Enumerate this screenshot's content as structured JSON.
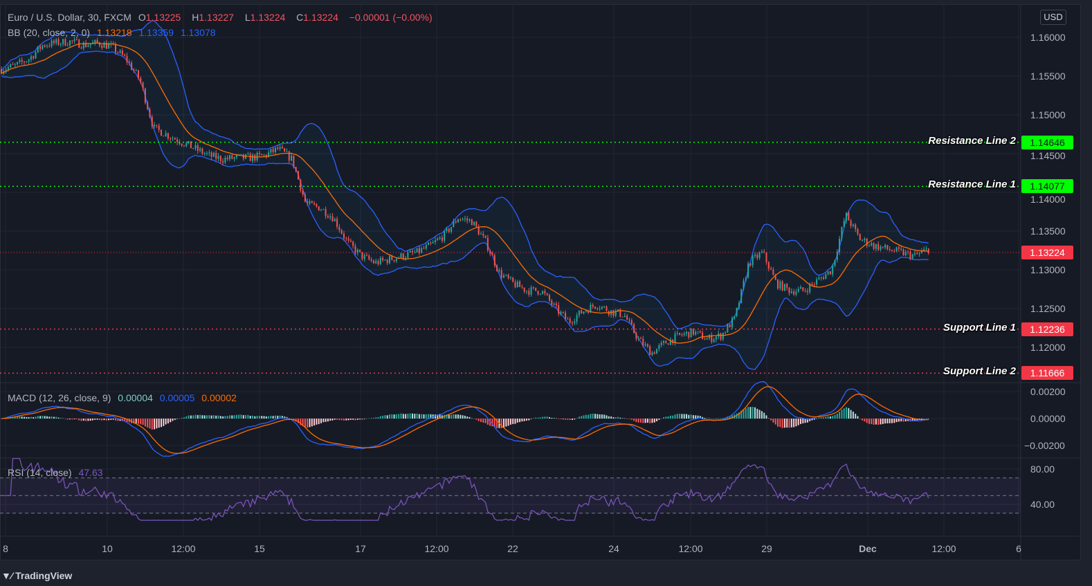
{
  "header": {
    "symbol": "Euro / U.S. Dollar, 30, FXCM",
    "open_label": "O",
    "open": "1.13225",
    "high_label": "H",
    "high": "1.13227",
    "low_label": "L",
    "low": "1.13224",
    "close_label": "C",
    "close": "1.13224",
    "change": "−0.00001 (−0.00%)"
  },
  "bb_legend": {
    "label": "BB (20, close, 2, 0)",
    "basis": "1.13218",
    "upper": "1.13359",
    "lower": "1.13078"
  },
  "macd_legend": {
    "label": "MACD (12, 26, close, 9)",
    "hist": "0.00004",
    "macd": "0.00005",
    "signal": "0.00002"
  },
  "rsi_legend": {
    "label": "RSI (14, close)",
    "value": "47.63"
  },
  "currency": "USD",
  "brand": "TradingView",
  "colors": {
    "up": "#26a69a",
    "down": "#ef5350",
    "bb_band": "#2962ff",
    "bb_basis": "#ff6d00",
    "macd": "#2962ff",
    "signal": "#ff6d00",
    "rsi": "#7e57c2",
    "resistance": "#00ff00",
    "support": "#f23645"
  },
  "chart_data": {
    "type": "candlestick",
    "interval": "30",
    "price_axis": {
      "ticks": [
        "1.16000",
        "1.15500",
        "1.15000",
        "1.14500",
        "1.14000",
        "1.13500",
        "1.13000",
        "1.12500",
        "1.12000"
      ],
      "ylim": [
        1.1148,
        1.1625
      ]
    },
    "time_axis": {
      "ticks": [
        "8",
        "10",
        "12:00",
        "15",
        "17",
        "12:00",
        "22",
        "24",
        "12:00",
        "29",
        "Dec",
        "12:00",
        "6"
      ]
    },
    "close_approx": [
      1.15589,
      1.15634,
      1.15723,
      1.15902,
      1.15929,
      1.15946,
      1.15902,
      1.15929,
      1.15875,
      1.15723,
      1.15455,
      1.1483,
      1.14741,
      1.14652,
      1.14563,
      1.14473,
      1.14429,
      1.14446,
      1.14446,
      1.14473,
      1.14563,
      1.14429,
      1.13848,
      1.13804,
      1.1367,
      1.13357,
      1.13179,
      1.13089,
      1.13134,
      1.13179,
      1.13223,
      1.13313,
      1.13446,
      1.1367,
      1.13625,
      1.13357,
      1.12955,
      1.12821,
      1.12732,
      1.12732,
      1.12509,
      1.1233,
      1.12464,
      1.12554,
      1.12464,
      1.1242,
      1.12107,
      1.11929,
      1.12063,
      1.12152,
      1.12196,
      1.12107,
      1.12152,
      1.12375,
      1.13089,
      1.13223,
      1.12821,
      1.12732,
      1.12732,
      1.12866,
      1.13,
      1.13714,
      1.13402,
      1.13313,
      1.13268,
      1.13223,
      1.13179,
      1.13268
    ],
    "current_price": {
      "value": "1.13224"
    },
    "levels": [
      {
        "name": "Resistance Line 2",
        "value": "1.14646",
        "kind": "resistance"
      },
      {
        "name": "Resistance Line 1",
        "value": "1.14077",
        "kind": "resistance"
      },
      {
        "name": "Support Line 1",
        "value": "1.12236",
        "kind": "support"
      },
      {
        "name": "Support Line 2",
        "value": "1.11666",
        "kind": "support"
      }
    ],
    "macd_axis": {
      "ticks": [
        "0.00200",
        "0.00000",
        "−0.00200"
      ],
      "ylim": [
        -0.0026,
        0.0026
      ]
    },
    "rsi_axis": {
      "ticks": [
        "80.00",
        "40.00"
      ],
      "bands": [
        30,
        50,
        70
      ],
      "ylim": [
        20,
        95
      ]
    }
  }
}
